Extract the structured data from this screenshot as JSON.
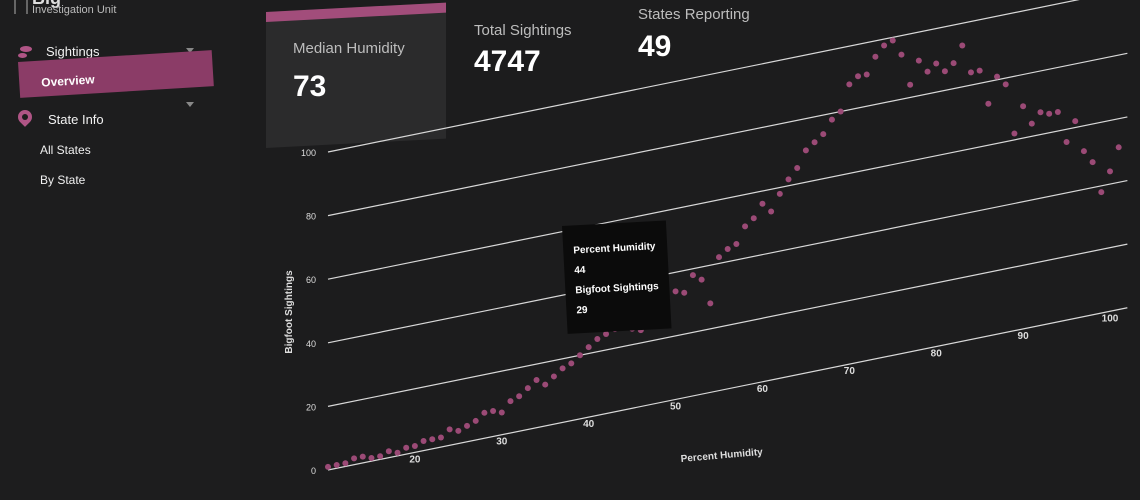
{
  "brand": {
    "title": "Big",
    "subtitle": "Investigation Unit"
  },
  "sidebar": {
    "sightings": {
      "label": "Sightings",
      "icon": "footprints-icon"
    },
    "overview": {
      "label": "Overview"
    },
    "state_info": {
      "label": "State Info",
      "icon": "map-pin-icon"
    },
    "all_states": {
      "label": "All States"
    },
    "by_state": {
      "label": "By State"
    }
  },
  "kpis": [
    {
      "label": "Median Humidity",
      "value": "73"
    },
    {
      "label": "Total Sightings",
      "value": "4747"
    },
    {
      "label": "States Reporting",
      "value": "49"
    }
  ],
  "tooltip": {
    "x_label": "Percent Humidity",
    "x_value": "44",
    "y_label": "Bigfoot Sightings",
    "y_value": "29"
  },
  "colors": {
    "accent": "#a24d7b",
    "point": "#9b4a76",
    "background": "#1c1c1d"
  },
  "chart_data": {
    "type": "scatter",
    "xlabel": "Percent Humidity",
    "ylabel": "Bigfoot Sightings",
    "xlim": [
      10,
      100
    ],
    "ylim": [
      0,
      100
    ],
    "x_ticks": [
      20,
      30,
      40,
      50,
      60,
      70,
      80,
      90,
      100
    ],
    "y_ticks": [
      0,
      20,
      40,
      60,
      80,
      100
    ],
    "grid": true,
    "highlighted_point": [
      44,
      29
    ],
    "points": [
      [
        10,
        1
      ],
      [
        11,
        1
      ],
      [
        12,
        1
      ],
      [
        13,
        2
      ],
      [
        14,
        2
      ],
      [
        15,
        1
      ],
      [
        16,
        1
      ],
      [
        17,
        2
      ],
      [
        18,
        1
      ],
      [
        19,
        2
      ],
      [
        20,
        2
      ],
      [
        21,
        3
      ],
      [
        22,
        3
      ],
      [
        23,
        3
      ],
      [
        24,
        5
      ],
      [
        25,
        4
      ],
      [
        26,
        5
      ],
      [
        27,
        6
      ],
      [
        28,
        8
      ],
      [
        29,
        8
      ],
      [
        30,
        7
      ],
      [
        31,
        10
      ],
      [
        32,
        11
      ],
      [
        33,
        13
      ],
      [
        34,
        15
      ],
      [
        35,
        13
      ],
      [
        36,
        15
      ],
      [
        37,
        17
      ],
      [
        38,
        18
      ],
      [
        39,
        20
      ],
      [
        40,
        22
      ],
      [
        41,
        24
      ],
      [
        42,
        25
      ],
      [
        43,
        26
      ],
      [
        44,
        29
      ],
      [
        45,
        25
      ],
      [
        46,
        24
      ],
      [
        47,
        26
      ],
      [
        48,
        30
      ],
      [
        49,
        32
      ],
      [
        50,
        34
      ],
      [
        51,
        33
      ],
      [
        52,
        38
      ],
      [
        53,
        36
      ],
      [
        54,
        28
      ],
      [
        55,
        42
      ],
      [
        56,
        44
      ],
      [
        57,
        45
      ],
      [
        58,
        50
      ],
      [
        59,
        52
      ],
      [
        60,
        56
      ],
      [
        61,
        53
      ],
      [
        62,
        58
      ],
      [
        63,
        62
      ],
      [
        64,
        65
      ],
      [
        65,
        70
      ],
      [
        66,
        72
      ],
      [
        67,
        74
      ],
      [
        68,
        78
      ],
      [
        69,
        80
      ],
      [
        70,
        88
      ],
      [
        71,
        90
      ],
      [
        72,
        90
      ],
      [
        73,
        95
      ],
      [
        74,
        98
      ],
      [
        75,
        99
      ],
      [
        76,
        94
      ],
      [
        77,
        84
      ],
      [
        78,
        91
      ],
      [
        79,
        87
      ],
      [
        80,
        89
      ],
      [
        81,
        86
      ],
      [
        82,
        88
      ],
      [
        83,
        93
      ],
      [
        84,
        84
      ],
      [
        85,
        84
      ],
      [
        86,
        73
      ],
      [
        87,
        81
      ],
      [
        88,
        78
      ],
      [
        89,
        62
      ],
      [
        90,
        70
      ],
      [
        91,
        64
      ],
      [
        92,
        67
      ],
      [
        93,
        66
      ],
      [
        94,
        66
      ],
      [
        95,
        56
      ],
      [
        96,
        62
      ],
      [
        97,
        52
      ],
      [
        98,
        48
      ],
      [
        99,
        38
      ],
      [
        100,
        44
      ],
      [
        101,
        51
      ]
    ]
  }
}
